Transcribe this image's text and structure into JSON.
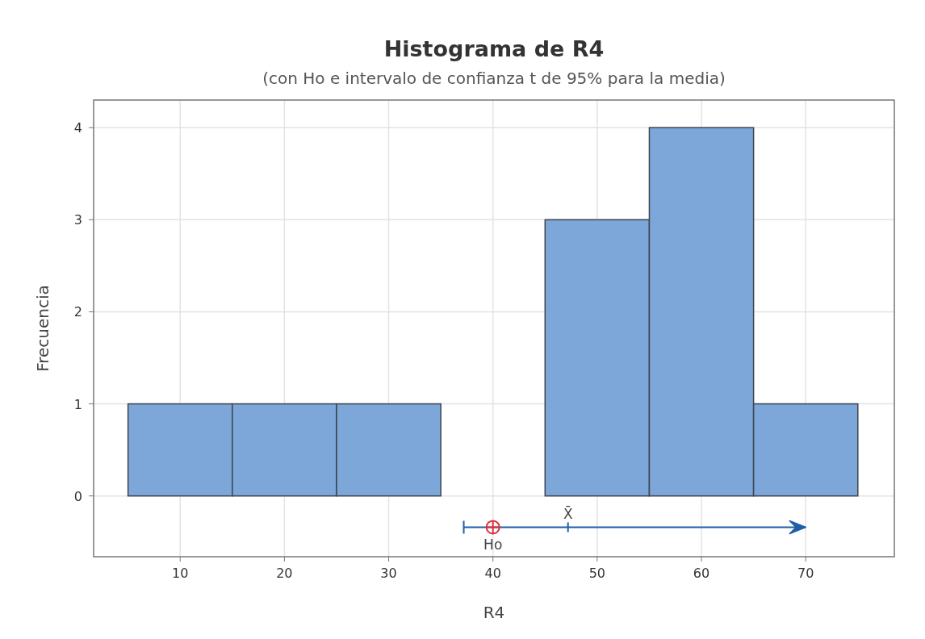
{
  "chart_data": {
    "type": "histogram",
    "title": "Histograma de R4",
    "subtitle": "(con Ho e intervalo de confianza t de 95% para la media)",
    "xlabel": "R4",
    "ylabel": "Frecuencia",
    "bins": [
      5,
      15,
      25,
      35,
      45,
      55,
      65,
      75
    ],
    "values": [
      1,
      1,
      1,
      0,
      3,
      4,
      1
    ],
    "color": "#7da6d9",
    "series": [
      {
        "type": "line",
        "x": [
          37.2,
          70
        ],
        "values": [
          -0.34,
          -0.34
        ],
        "color": "#1f5fa8"
      },
      {
        "type": "scatter",
        "x": [
          40
        ],
        "values": [
          -0.34
        ],
        "color": "#e0303a",
        "marker": "cross"
      }
    ],
    "annotations": [
      {
        "text": "X̄",
        "x": 47.2,
        "y": -0.34
      },
      {
        "text": "Ho",
        "x": 40,
        "y": -0.34
      }
    ],
    "xlim": [
      1.7,
      78.5
    ],
    "ylim": [
      -0.66,
      4.3
    ],
    "xticks": [
      10,
      20,
      30,
      40,
      50,
      60,
      70
    ],
    "yticks": [
      0,
      1,
      2,
      3,
      4
    ],
    "grid": true
  }
}
